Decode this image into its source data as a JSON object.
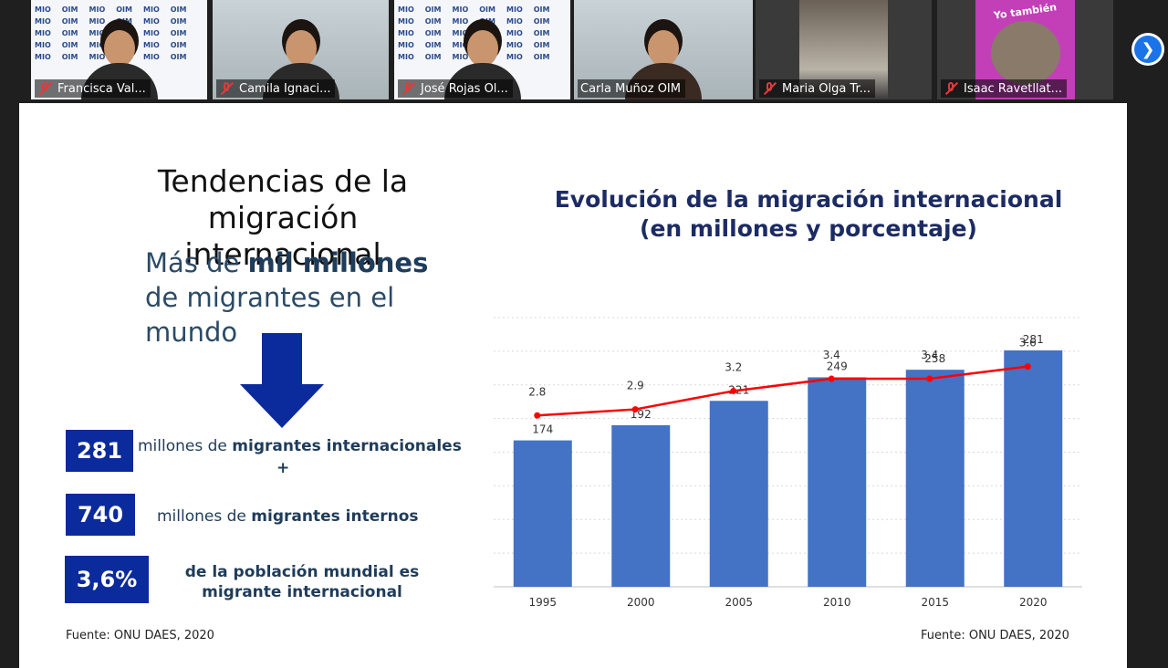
{
  "participants": [
    {
      "name": "Francisca Val...",
      "muted": true,
      "bg": "logos"
    },
    {
      "name": "Camila Ignaci...",
      "muted": true,
      "bg": "room"
    },
    {
      "name": "José Rojas Ol...",
      "muted": true,
      "bg": "logos"
    },
    {
      "name": "Carla Muñoz OIM",
      "muted": false,
      "bg": "room",
      "active": true
    },
    {
      "name": "Maria Olga Tr...",
      "muted": true,
      "bg": "photo"
    },
    {
      "name": "Isaac Ravetllat...",
      "muted": true,
      "bg": "avatar",
      "avatar_text": "Yo también"
    }
  ],
  "logo_wall_text": [
    "MIO",
    "OIM"
  ],
  "next_button_icon": "chevron-right-icon",
  "slide": {
    "title": "Tendencias de la migración internacional",
    "subtitle_prefix": "Más de ",
    "subtitle_bold": "mil millones",
    "subtitle_suffix": " de migrantes en el mundo",
    "stats": [
      {
        "value": "281",
        "text_prefix": "millones de ",
        "text_bold": "migrantes internacionales"
      },
      {
        "value": "740",
        "text_prefix": "millones de ",
        "text_bold": "migrantes internos"
      },
      {
        "value": "3,6%",
        "text_prefix": "",
        "text_bold": "de la población mundial es migrante internacional"
      }
    ],
    "plus": "+",
    "source_left": "Fuente: ONU DAES, 2020",
    "source_right": "Fuente: ONU DAES, 2020",
    "chart_title_line1": "Evolución de la migración internacional",
    "chart_title_line2": "(en millones y porcentaje)"
  },
  "colors": {
    "bar": "#4472c4",
    "line": "#ff0000",
    "stat_box": "#0b2a9c"
  },
  "chart_data": {
    "type": "bar",
    "title": "Evolución de la migración internacional (en millones y porcentaje)",
    "categories": [
      "1995",
      "2000",
      "2005",
      "2010",
      "2015",
      "2020"
    ],
    "series": [
      {
        "type": "bar",
        "values": [
          174,
          192,
          221,
          249,
          258,
          281
        ]
      },
      {
        "type": "line",
        "values": [
          2.8,
          2.9,
          3.2,
          3.4,
          3.4,
          3.6
        ]
      }
    ],
    "ylim": [
      0,
      320
    ],
    "y2lim": [
      0,
      4.4
    ],
    "grid": "dotted horizontal"
  }
}
